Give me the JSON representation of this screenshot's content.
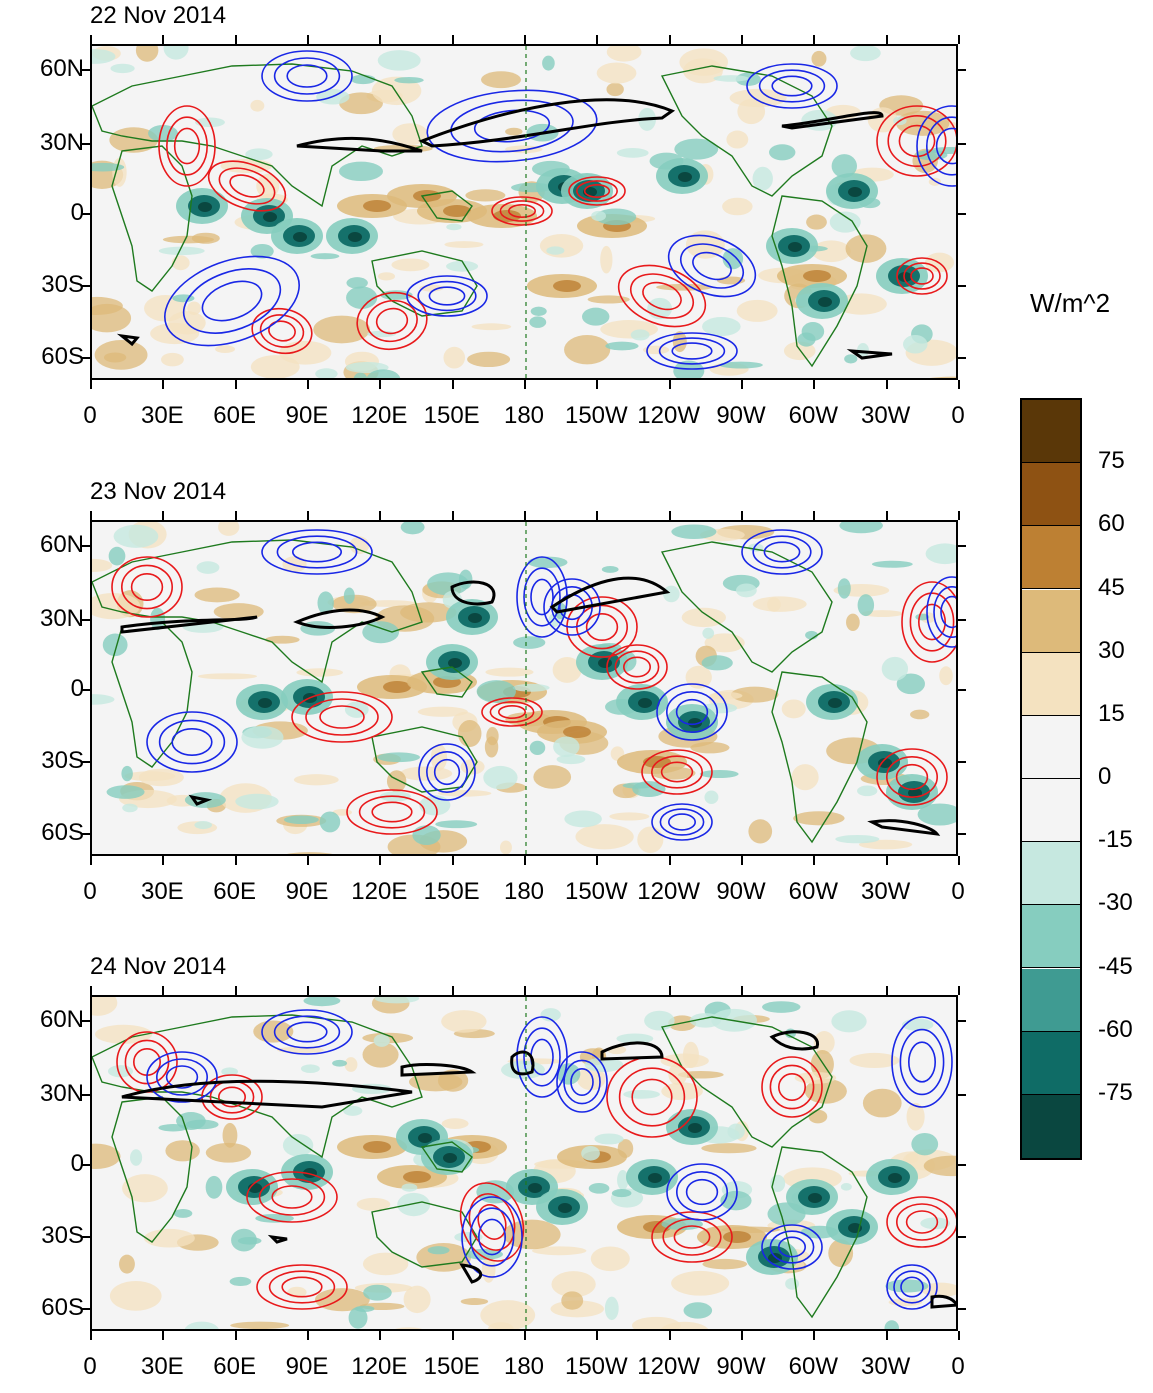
{
  "panels": [
    {
      "title": "22 Nov 2014"
    },
    {
      "title": "23 Nov 2014"
    },
    {
      "title": "24 Nov 2014"
    }
  ],
  "lat_labels": [
    "60N",
    "30N",
    "0",
    "30S",
    "60S"
  ],
  "lon_labels": [
    "0",
    "30E",
    "60E",
    "90E",
    "120E",
    "150E",
    "180",
    "150W",
    "120W",
    "90W",
    "60W",
    "30W",
    "0"
  ],
  "colorbar": {
    "units": "W/m^2",
    "labels": [
      "75",
      "60",
      "45",
      "30",
      "15",
      "0",
      "-15",
      "-30",
      "-45",
      "-60",
      "-75"
    ],
    "colors": [
      "#5a3708",
      "#8e5213",
      "#bd8033",
      "#ddba7a",
      "#f4e2c0",
      "#f4f4f4",
      "#f4f4f4",
      "#c6e8e0",
      "#86cdbf",
      "#3f9b92",
      "#0f6c66",
      "#0a4740"
    ]
  },
  "legend_colors": {
    "positive_contour": "#e8191b",
    "negative_contour": "#1927e6",
    "jet_contour": "#000000",
    "coastline": "#1e7a1e"
  }
}
